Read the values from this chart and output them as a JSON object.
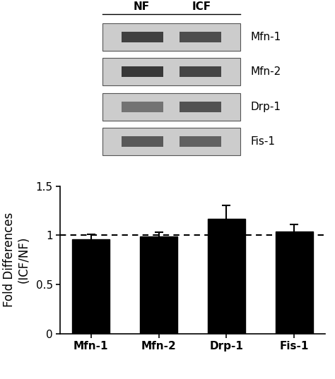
{
  "categories": [
    "Mfn-1",
    "Mfn-2",
    "Drp-1",
    "Fis-1"
  ],
  "values": [
    0.96,
    0.99,
    1.17,
    1.04
  ],
  "errors": [
    0.05,
    0.04,
    0.13,
    0.07
  ],
  "bar_color": "#000000",
  "bar_width": 0.55,
  "ylim": [
    0.0,
    1.5
  ],
  "yticks": [
    0.0,
    0.5,
    1.0,
    1.5
  ],
  "ylabel": "Fold Differences\n(ICF/NF)",
  "dotted_line_y": 1.0,
  "blot_labels": [
    "Mfn-1",
    "Mfn-2",
    "Drp-1",
    "Fis-1"
  ],
  "blot_header_NF": "NF",
  "blot_header_ICF": "ICF",
  "background_color": "#ffffff",
  "tick_fontsize": 11,
  "label_fontsize": 12,
  "blot_label_fontsize": 11
}
